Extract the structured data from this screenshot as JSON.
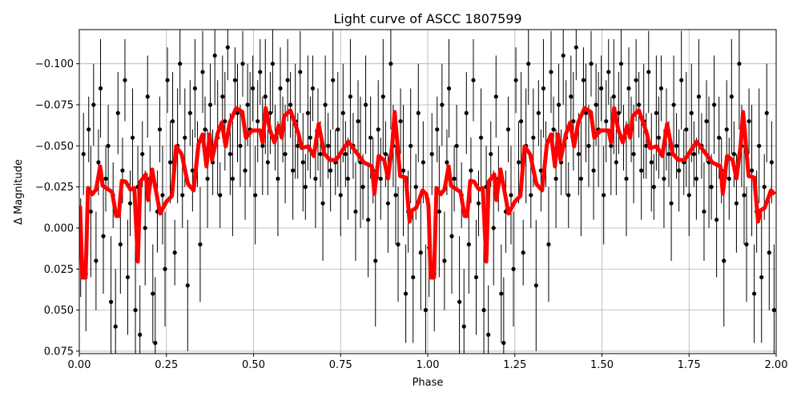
{
  "chart_data": {
    "type": "scatter",
    "title": "Light curve of ASCC 1807599",
    "xlabel": "Phase",
    "ylabel": "Δ Magnitude",
    "xlim": [
      0,
      2
    ],
    "ylim": [
      0.0765,
      -0.1208
    ],
    "y_inverted": true,
    "grid": true,
    "xticks": [
      0,
      0.25,
      0.5,
      0.75,
      1.0,
      1.25,
      1.5,
      1.75,
      2.0
    ],
    "xtick_labels": [
      "0.00",
      "0.25",
      "0.50",
      "0.75",
      "1.00",
      "1.25",
      "1.50",
      "1.75",
      "2.00"
    ],
    "yticks": [
      -0.1,
      -0.075,
      -0.05,
      -0.025,
      0,
      0.025,
      0.05,
      0.075
    ],
    "ytick_labels": [
      "−0.100",
      "−0.075",
      "−0.050",
      "−0.025",
      "0.000",
      "0.025",
      "0.050",
      "0.075"
    ],
    "colors": {
      "points": "#000000",
      "model": "#ff0000",
      "grid": "#b0b0b0"
    },
    "phase_repeated": true,
    "points": {
      "name": "observations",
      "phase": [
        0.004,
        0.012,
        0.019,
        0.027,
        0.033,
        0.041,
        0.048,
        0.055,
        0.061,
        0.069,
        0.076,
        0.083,
        0.091,
        0.097,
        0.104,
        0.111,
        0.118,
        0.124,
        0.131,
        0.139,
        0.146,
        0.153,
        0.161,
        0.168,
        0.174,
        0.181,
        0.189,
        0.196,
        0.203,
        0.211,
        0.218,
        0.224,
        0.231,
        0.239,
        0.246,
        0.253,
        0.261,
        0.268,
        0.274,
        0.282,
        0.289,
        0.296,
        0.303,
        0.311,
        0.318,
        0.325,
        0.332,
        0.339,
        0.347,
        0.354,
        0.361,
        0.368,
        0.376,
        0.383,
        0.389,
        0.397,
        0.404,
        0.411,
        0.418,
        0.426,
        0.433,
        0.44,
        0.447,
        0.454,
        0.462,
        0.469,
        0.476,
        0.483,
        0.49,
        0.498,
        0.505,
        0.512,
        0.519,
        0.526,
        0.534,
        0.541,
        0.548,
        0.555,
        0.562,
        0.57,
        0.577,
        0.584,
        0.591,
        0.598,
        0.606,
        0.613,
        0.62,
        0.627,
        0.634,
        0.642,
        0.649,
        0.656,
        0.663,
        0.67,
        0.678,
        0.685,
        0.692,
        0.699,
        0.706,
        0.714,
        0.721,
        0.728,
        0.735,
        0.742,
        0.75,
        0.757,
        0.764,
        0.771,
        0.778,
        0.786,
        0.793,
        0.8,
        0.807,
        0.814,
        0.822,
        0.829,
        0.836,
        0.843,
        0.85,
        0.858,
        0.865,
        0.872,
        0.879,
        0.886,
        0.894,
        0.901,
        0.908,
        0.915,
        0.922,
        0.93,
        0.937,
        0.944,
        0.951,
        0.958,
        0.966,
        0.973,
        0.98,
        0.987,
        0.994
      ],
      "mag": [
        0.012,
        -0.045,
        0.028,
        -0.06,
        -0.01,
        -0.075,
        0.02,
        -0.04,
        -0.085,
        0.005,
        -0.03,
        -0.05,
        0.045,
        -0.02,
        0.06,
        -0.07,
        0.01,
        -0.035,
        -0.09,
        0.03,
        -0.015,
        -0.055,
        0.05,
        -0.025,
        0.065,
        -0.045,
        0.0,
        -0.08,
        -0.03,
        0.04,
        0.07,
        -0.01,
        -0.06,
        -0.02,
        0.025,
        -0.09,
        -0.04,
        -0.065,
        0.015,
        -0.05,
        -0.1,
        -0.02,
        -0.055,
        0.035,
        -0.07,
        -0.035,
        -0.085,
        -0.045,
        0.01,
        -0.095,
        -0.06,
        -0.03,
        -0.075,
        -0.04,
        -0.105,
        -0.055,
        -0.02,
        -0.08,
        -0.065,
        -0.11,
        -0.045,
        -0.03,
        -0.09,
        -0.07,
        -0.05,
        -0.1,
        -0.035,
        -0.075,
        -0.06,
        -0.085,
        -0.02,
        -0.065,
        -0.095,
        -0.05,
        -0.08,
        -0.04,
        -0.07,
        -0.1,
        -0.055,
        -0.03,
        -0.085,
        -0.06,
        -0.045,
        -0.09,
        -0.075,
        -0.035,
        -0.065,
        -0.05,
        -0.095,
        -0.04,
        -0.025,
        -0.07,
        -0.055,
        -0.085,
        -0.03,
        -0.06,
        -0.045,
        -0.015,
        -0.075,
        -0.05,
        -0.035,
        -0.09,
        -0.04,
        -0.06,
        -0.02,
        -0.07,
        -0.045,
        -0.03,
        -0.08,
        -0.05,
        -0.01,
        -0.065,
        -0.04,
        -0.025,
        -0.075,
        -0.005,
        -0.055,
        -0.035,
        0.02,
        -0.06,
        -0.03,
        -0.08,
        -0.045,
        -0.015,
        -0.1,
        -0.05,
        -0.02,
        0.01,
        -0.065,
        -0.035,
        0.04,
        -0.01,
        -0.05,
        0.03,
        -0.025,
        -0.07,
        0.015,
        -0.04,
        0.05
      ],
      "err": [
        0.03,
        0.025,
        0.035,
        0.02,
        0.04,
        0.025,
        0.03,
        0.02,
        0.03,
        0.035,
        0.02,
        0.025,
        0.04,
        0.02,
        0.035,
        0.025,
        0.03,
        0.02,
        0.025,
        0.035,
        0.02,
        0.03,
        0.04,
        0.025,
        0.03,
        0.02,
        0.035,
        0.025,
        0.02,
        0.03,
        0.04,
        0.025,
        0.02,
        0.03,
        0.035,
        0.02,
        0.025,
        0.03,
        0.02,
        0.035,
        0.025,
        0.02,
        0.03,
        0.04,
        0.02,
        0.025,
        0.03,
        0.02,
        0.035,
        0.025,
        0.02,
        0.03,
        0.025,
        0.02,
        0.03,
        0.035,
        0.02,
        0.025,
        0.03,
        0.02,
        0.025,
        0.035,
        0.02,
        0.03,
        0.025,
        0.02,
        0.03,
        0.025,
        0.035,
        0.02,
        0.03,
        0.025,
        0.02,
        0.03,
        0.035,
        0.02,
        0.025,
        0.03,
        0.02,
        0.035,
        0.025,
        0.02,
        0.03,
        0.025,
        0.02,
        0.03,
        0.035,
        0.02,
        0.025,
        0.03,
        0.02,
        0.035,
        0.025,
        0.02,
        0.03,
        0.025,
        0.02,
        0.035,
        0.03,
        0.02,
        0.025,
        0.03,
        0.02,
        0.035,
        0.025,
        0.03,
        0.02,
        0.025,
        0.035,
        0.02,
        0.03,
        0.025,
        0.04,
        0.02,
        0.03,
        0.035,
        0.025,
        0.02,
        0.04,
        0.03,
        0.025,
        0.035,
        0.02,
        0.03,
        0.04,
        0.025,
        0.03,
        0.035,
        0.02,
        0.04,
        0.03,
        0.025,
        0.035,
        0.04,
        0.02,
        0.03,
        0.035,
        0.025,
        0.04
      ]
    },
    "model": {
      "name": "model",
      "phase": [
        0.002,
        0.009,
        0.018,
        0.025,
        0.037,
        0.048,
        0.06,
        0.067,
        0.094,
        0.106,
        0.113,
        0.122,
        0.133,
        0.147,
        0.158,
        0.168,
        0.175,
        0.191,
        0.197,
        0.209,
        0.232,
        0.25,
        0.266,
        0.278,
        0.294,
        0.312,
        0.328,
        0.342,
        0.354,
        0.365,
        0.374,
        0.381,
        0.397,
        0.409,
        0.42,
        0.432,
        0.45,
        0.468,
        0.478,
        0.496,
        0.519,
        0.526,
        0.535,
        0.547,
        0.56,
        0.572,
        0.581,
        0.588,
        0.606,
        0.629,
        0.638,
        0.657,
        0.673,
        0.687,
        0.703,
        0.719,
        0.737,
        0.755,
        0.772,
        0.794,
        0.817,
        0.84,
        0.847,
        0.859,
        0.875,
        0.886,
        0.898,
        0.905,
        0.921,
        0.937,
        0.948,
        0.955,
        0.967,
        0.985,
        0.996
      ],
      "mag": [
        -0.0136,
        0.0302,
        0.0302,
        -0.0244,
        -0.0205,
        -0.0234,
        -0.0375,
        -0.0258,
        -0.0219,
        -0.0073,
        -0.0073,
        -0.0287,
        -0.0282,
        -0.0234,
        -0.0244,
        0.0205,
        -0.0282,
        -0.0326,
        -0.017,
        -0.0356,
        -0.0088,
        -0.0161,
        -0.0195,
        -0.0497,
        -0.0448,
        -0.0268,
        -0.0229,
        -0.0511,
        -0.057,
        -0.0375,
        -0.057,
        -0.0414,
        -0.0575,
        -0.0643,
        -0.0497,
        -0.0643,
        -0.073,
        -0.0706,
        -0.055,
        -0.0594,
        -0.0594,
        -0.0521,
        -0.073,
        -0.0599,
        -0.0521,
        -0.0623,
        -0.055,
        -0.0682,
        -0.0716,
        -0.0575,
        -0.0487,
        -0.0497,
        -0.0438,
        -0.0633,
        -0.0453,
        -0.0414,
        -0.0414,
        -0.0472,
        -0.0526,
        -0.0463,
        -0.0399,
        -0.0375,
        -0.0209,
        -0.0438,
        -0.0414,
        -0.0302,
        -0.0502,
        -0.0706,
        -0.0316,
        -0.0307,
        -0.0039,
        -0.0107,
        -0.0122,
        -0.0229,
        -0.0205
      ]
    }
  }
}
